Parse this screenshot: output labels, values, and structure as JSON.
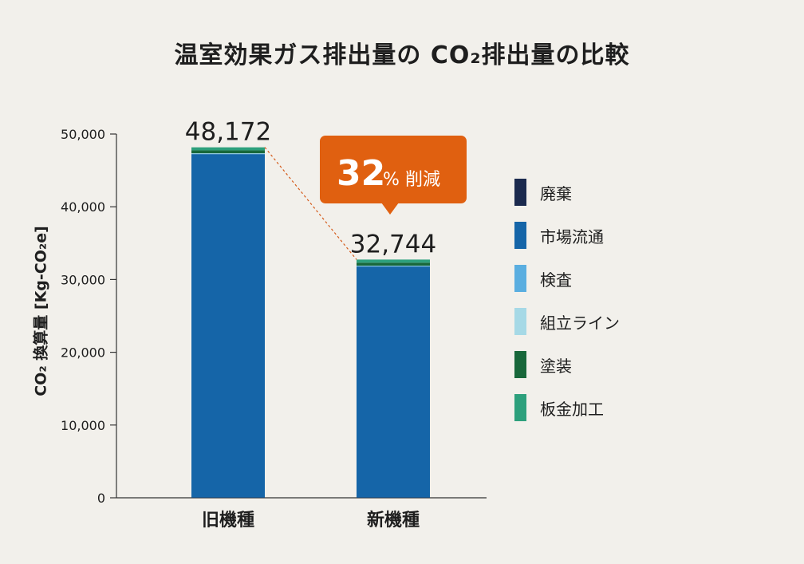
{
  "title": "温室効果ガス排出量の CO₂排出量の比較",
  "chart_data": {
    "type": "bar",
    "stacked": true,
    "ylabel": "CO₂ 換算量 [Kg-CO₂e]",
    "ylim": [
      0,
      50000
    ],
    "yticks": [
      "50,000",
      "40,000",
      "30,000",
      "20,000",
      "10,000",
      "0"
    ],
    "categories": [
      "旧機種",
      "新機種"
    ],
    "totals": [
      "48,172",
      "32,744"
    ],
    "series": [
      {
        "name": "廃棄",
        "color": "#1b2a4e",
        "values": [
          40,
          40
        ]
      },
      {
        "name": "市場流通",
        "color": "#1565a8",
        "values": [
          47200,
          31750
        ]
      },
      {
        "name": "検査",
        "color": "#5aaee0",
        "values": [
          60,
          60
        ]
      },
      {
        "name": "組立ライン",
        "color": "#a6d9e6",
        "values": [
          60,
          60
        ]
      },
      {
        "name": "塗装",
        "color": "#18673a",
        "values": [
          400,
          400
        ]
      },
      {
        "name": "板金加工",
        "color": "#2da07c",
        "values": [
          412,
          434
        ]
      }
    ],
    "callout": {
      "value": "32",
      "unit": "%",
      "text": "削減",
      "color": "#e06010"
    },
    "grid": false,
    "legend_position": "right"
  }
}
